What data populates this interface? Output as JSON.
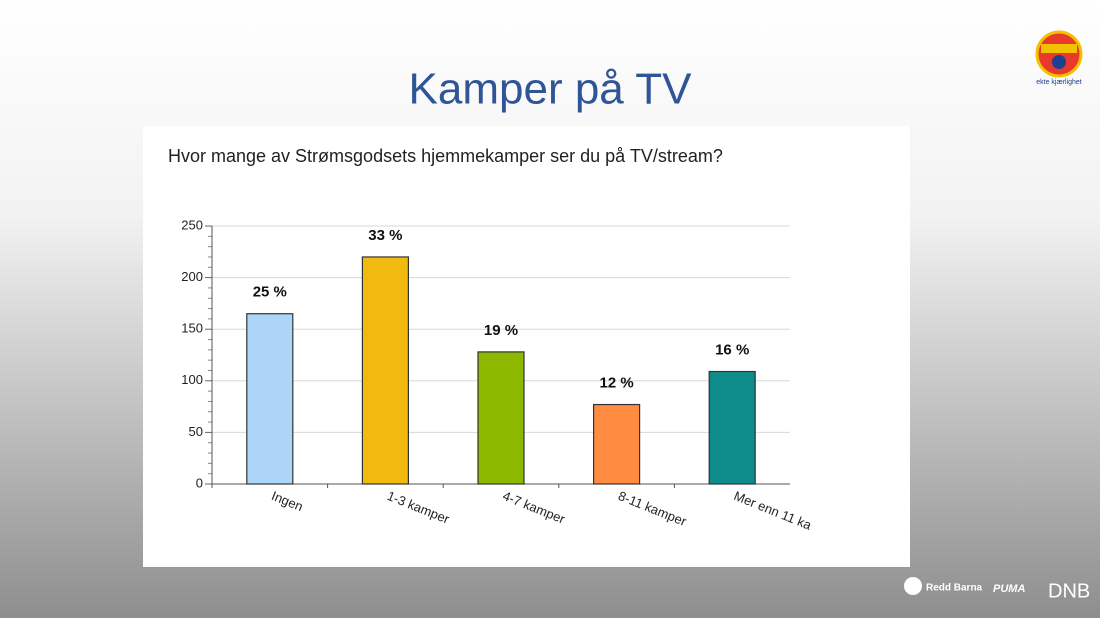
{
  "slide": {
    "title": "Kamper på TV",
    "logo_text": "ekte kjærlighet",
    "sponsors": [
      "Redd Barna",
      "PUMA",
      "DNB"
    ]
  },
  "chart_data": {
    "type": "bar",
    "title": "Hvor mange av Strømsgodsets hjemmekamper ser du på TV/stream?",
    "categories": [
      "Ingen",
      "1-3 kamper",
      "4-7 kamper",
      "8-11 kamper",
      "Mer enn 11 ka"
    ],
    "values": [
      165,
      220,
      128,
      77,
      109
    ],
    "value_labels": [
      "25 %",
      "33 %",
      "19 %",
      "12 %",
      "16 %"
    ],
    "colors": [
      "#acd5f7",
      "#f2b90f",
      "#8cb800",
      "#ff8c40",
      "#0e8b8b"
    ],
    "ylim": [
      0,
      250
    ],
    "yticks": [
      0,
      50,
      100,
      150,
      200,
      250
    ],
    "grid": true
  }
}
